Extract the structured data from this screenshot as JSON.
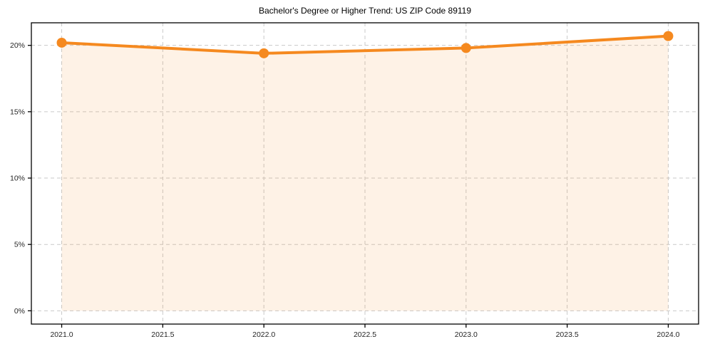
{
  "figure": {
    "background_color": "#ffffff"
  },
  "chart_data": {
    "type": "line",
    "title": "Bachelor's Degree or Higher Trend: US ZIP Code 89119",
    "x": [
      2021,
      2022,
      2023,
      2024
    ],
    "values": [
      20.2,
      19.4,
      19.8,
      20.7
    ],
    "xlabel": "",
    "ylabel": "",
    "xlim": [
      2020.85,
      2024.15
    ],
    "ylim": [
      -1.0,
      21.7
    ],
    "x_ticks": [
      {
        "v": 2021.0,
        "label": "2021.0"
      },
      {
        "v": 2021.5,
        "label": "2021.5"
      },
      {
        "v": 2022.0,
        "label": "2022.0"
      },
      {
        "v": 2022.5,
        "label": "2022.5"
      },
      {
        "v": 2023.0,
        "label": "2023.0"
      },
      {
        "v": 2023.5,
        "label": "2023.5"
      },
      {
        "v": 2024.0,
        "label": "2024.0"
      }
    ],
    "y_ticks": [
      {
        "v": 0,
        "label": "0%"
      },
      {
        "v": 5,
        "label": "5%"
      },
      {
        "v": 10,
        "label": "10%"
      },
      {
        "v": 15,
        "label": "15%"
      },
      {
        "v": 20,
        "label": "20%"
      }
    ],
    "grid": true,
    "grid_style": "dashed",
    "legend": "none",
    "fill_to_zero": true,
    "colors": {
      "line": "#f5891f",
      "marker": "#f5891f",
      "fill": "rgba(245,137,31,0.11)",
      "grid": "#c9c9c9",
      "spine": "#000000",
      "tick_text": "#262626",
      "title_text": "#000000"
    }
  }
}
